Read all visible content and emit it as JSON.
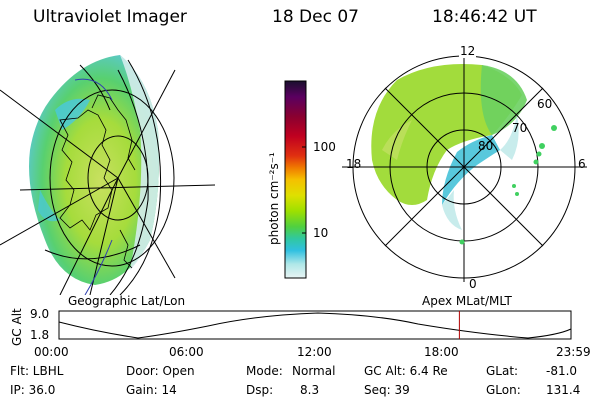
{
  "header": {
    "instrument": "Ultraviolet Imager",
    "date": "18 Dec 07",
    "time": "18:46:42 UT"
  },
  "colorbar": {
    "unit_label": "photon cm⁻²s⁻¹",
    "ticks": [
      "100",
      "10"
    ],
    "colors": [
      "#1a0f2e",
      "#5a0060",
      "#8a0030",
      "#c00020",
      "#e03010",
      "#f07a00",
      "#f5c000",
      "#dfe000",
      "#9ee000",
      "#50d040",
      "#30c8a0",
      "#30c0e0",
      "#b0e8e8",
      "#e8f4f4"
    ]
  },
  "polar_plot": {
    "mlat_labels": [
      "60",
      "70",
      "80"
    ],
    "mlt_labels": {
      "top": "12",
      "left": "18",
      "right": "6",
      "bottom": "0"
    }
  },
  "orbit": {
    "y_axis_label": "GC Alt",
    "y_max": "9.0",
    "y_min": "1.8",
    "left_caption": "Geographic Lat/Lon",
    "right_caption": "Apex  MLat/MLT",
    "time_ticks": [
      "00:00",
      "06:00",
      "12:00",
      "18:00",
      "23:59"
    ],
    "current_time_fraction": 0.782
  },
  "info": {
    "flt": "Flt: LBHL",
    "ip": "IP: 36.0",
    "door": "Door: Open",
    "gain": "Gain: 14",
    "mode_label": "Mode:",
    "mode_value": "Normal",
    "dsp_label": "Dsp:",
    "dsp_value": "8.3",
    "gc_alt": "GC Alt: 6.4 Re",
    "seq": "Seq: 39",
    "glat_label": "GLat:",
    "glat_value": "-81.0",
    "glon_label": "GLon:",
    "glon_value": "131.4"
  }
}
